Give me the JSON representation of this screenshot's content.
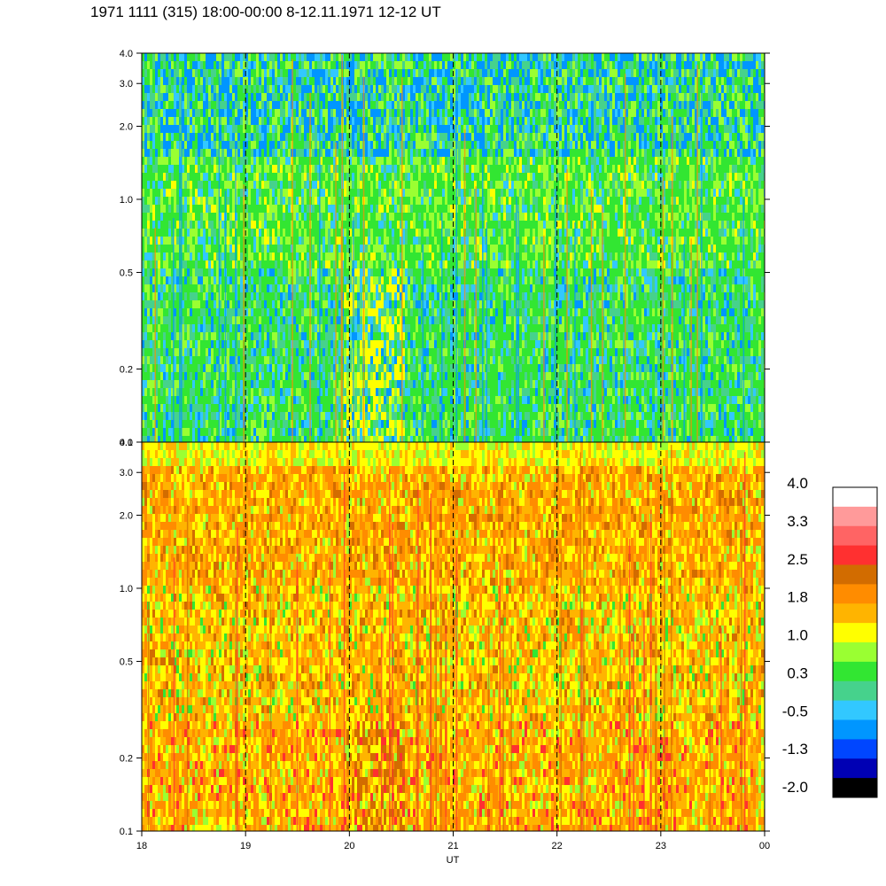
{
  "title": "1971 1111 (315) 18:00-00:00 8-12.11.1971  12-12 UT",
  "chart_data": [
    {
      "type": "heatmap",
      "panel": "top",
      "x_range": [
        18,
        24
      ],
      "y_scale": "log",
      "y_range": [
        0.1,
        4.0
      ],
      "y_ticks": [
        "4.0",
        "3.0",
        "2.0",
        "1.0",
        "0.5",
        "0.2",
        "0.1"
      ],
      "y_tick_values": [
        4.0,
        3.0,
        2.0,
        1.0,
        0.5,
        0.2,
        0.1
      ],
      "dominant_levels": "-0.5 to 1.0",
      "vertical_dashed_lines_at": [
        19,
        20,
        21,
        22,
        23
      ]
    },
    {
      "type": "heatmap",
      "panel": "bottom",
      "x_range": [
        18,
        24
      ],
      "y_scale": "log",
      "y_range": [
        0.1,
        4.0
      ],
      "y_ticks": [
        "4.0",
        "3.0",
        "2.0",
        "1.0",
        "0.5",
        "0.2",
        "0.1"
      ],
      "y_tick_values": [
        4.0,
        3.0,
        2.0,
        1.0,
        0.5,
        0.2,
        0.1
      ],
      "dominant_levels": "1.0 to 2.5",
      "vertical_dashed_lines_at": [
        19,
        20,
        21,
        22,
        23
      ]
    }
  ],
  "x_axis": {
    "label": "UT",
    "ticks": [
      "18",
      "19",
      "20",
      "21",
      "22",
      "23",
      "00"
    ],
    "tick_values": [
      18,
      19,
      20,
      21,
      22,
      23,
      24
    ]
  },
  "colorbar": {
    "labels": [
      "4.0",
      "3.3",
      "2.5",
      "1.8",
      "1.0",
      "0.3",
      "-0.5",
      "-1.3",
      "-2.0"
    ],
    "colors_top_to_bottom": [
      "#ffffff",
      "#ff9a9a",
      "#ff6464",
      "#ff3030",
      "#d26c00",
      "#ff8c00",
      "#ffb400",
      "#ffff00",
      "#9aff32",
      "#32e632",
      "#46d28c",
      "#32c8ff",
      "#0096ff",
      "#0046ff",
      "#0000b4",
      "#000000"
    ]
  },
  "palette": {
    "green": "#32e632",
    "light_green": "#9aff32",
    "teal": "#46d28c",
    "cyan": "#32c8ff",
    "blue": "#0096ff",
    "yellow": "#ffff00",
    "amber": "#ffb400",
    "orange": "#ff8c00",
    "dark_orange": "#d26c00",
    "red": "#ff3030"
  }
}
